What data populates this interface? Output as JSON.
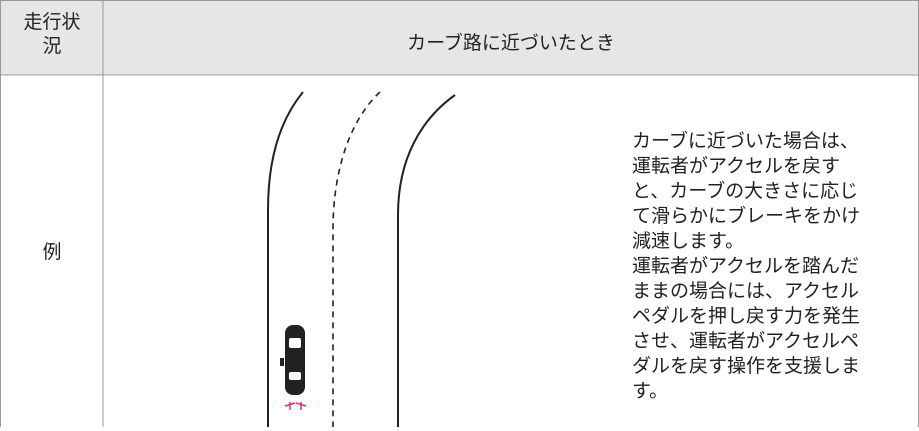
{
  "header": {
    "label_lines": [
      "走行状",
      "況"
    ],
    "title": "カーブ路に近づいたとき"
  },
  "row": {
    "label": "例",
    "description_lines": [
      "カーブに近づいた場合は、",
      "運転者がアクセルを戻す",
      "と、カーブの大きさに応じ",
      "て滑らかにブレーキをかけ",
      "減速します。",
      "運転者がアクセルを踏んだ",
      "ままの場合には、アクセル",
      "ペダルを押し戻す力を発生",
      "させ、運転者がアクセルペ",
      "ダルを戻す操作を支援しま",
      "す。"
    ]
  }
}
